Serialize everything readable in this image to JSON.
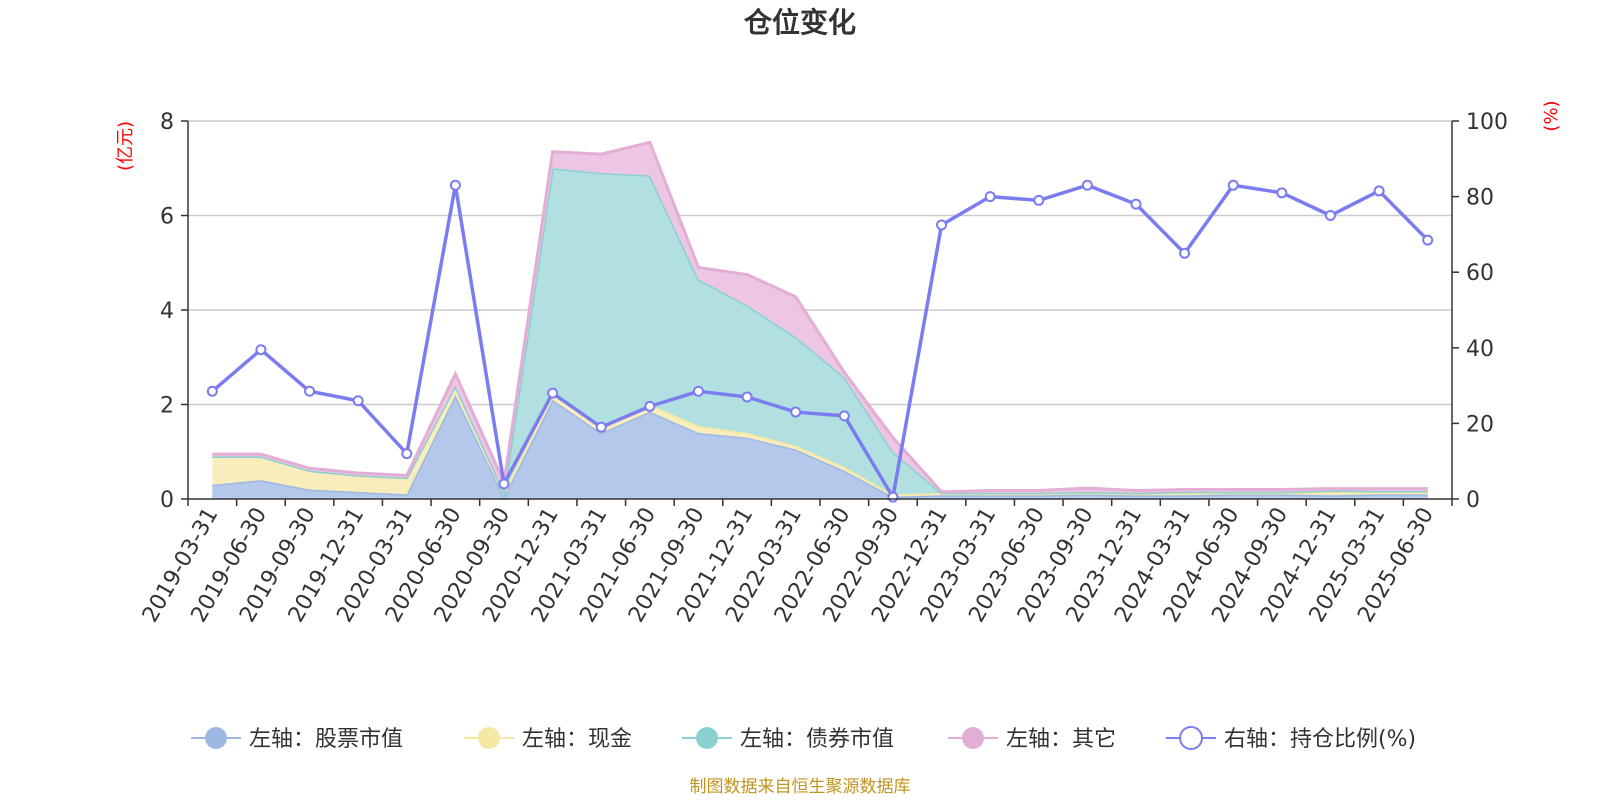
{
  "chart_data": {
    "type": "area",
    "title": "仓位变化",
    "left_axis": {
      "unit_label": "(亿元)",
      "ylim": [
        0,
        8
      ],
      "ticks": [
        "0",
        "2",
        "4",
        "6",
        "8"
      ]
    },
    "right_axis": {
      "unit_label": "(%)",
      "ylim": [
        0,
        100
      ],
      "ticks": [
        "0",
        "20",
        "40",
        "60",
        "80",
        "100"
      ]
    },
    "categories": [
      "2019-03-31",
      "2019-06-30",
      "2019-09-30",
      "2019-12-31",
      "2020-03-31",
      "2020-06-30",
      "2020-09-30",
      "2020-12-31",
      "2021-03-31",
      "2021-06-30",
      "2021-09-30",
      "2021-12-31",
      "2022-03-31",
      "2022-06-30",
      "2022-09-30",
      "2022-12-31",
      "2023-03-31",
      "2023-06-30",
      "2023-09-30",
      "2023-12-31",
      "2024-03-31",
      "2024-06-30",
      "2024-09-30",
      "2024-12-31",
      "2025-03-31",
      "2025-06-30"
    ],
    "stacked_series": [
      {
        "name": "左轴：股票市值",
        "color": "#9db8e3",
        "fill": "#b3c8ea",
        "values": [
          0.3,
          0.4,
          0.2,
          0.15,
          0.1,
          2.2,
          0.05,
          2.1,
          1.4,
          1.85,
          1.4,
          1.3,
          1.05,
          0.6,
          0.05,
          0.08,
          0.08,
          0.08,
          0.1,
          0.08,
          0.08,
          0.1,
          0.1,
          0.08,
          0.1,
          0.1
        ]
      },
      {
        "name": "左轴：现金",
        "color": "#f5e8a3",
        "fill": "#f8edbb",
        "values": [
          0.6,
          0.5,
          0.4,
          0.35,
          0.35,
          0.2,
          0.1,
          0.15,
          0.1,
          0.15,
          0.15,
          0.1,
          0.08,
          0.08,
          0.05,
          0.05,
          0.03,
          0.03,
          0.03,
          0.03,
          0.05,
          0.03,
          0.03,
          0.08,
          0.05,
          0.05
        ]
      },
      {
        "name": "左轴：债券市值",
        "color": "#8ad0d0",
        "fill": "#b2e0e0",
        "values": [
          0,
          0,
          0,
          0,
          0,
          0,
          0,
          4.75,
          5.4,
          4.85,
          3.1,
          2.7,
          2.3,
          1.9,
          0.9,
          0,
          0.02,
          0.02,
          0.02,
          0.02,
          0.02,
          0.02,
          0.02,
          0.02,
          0.02,
          0.02
        ]
      },
      {
        "name": "左轴：其它",
        "color": "#e3aed6",
        "fill": "#ecc6e3",
        "values": [
          0.05,
          0.05,
          0.05,
          0.05,
          0.05,
          0.25,
          0.2,
          0.35,
          0.4,
          0.7,
          0.25,
          0.65,
          0.85,
          0.1,
          0.3,
          0.02,
          0.05,
          0.05,
          0.08,
          0.05,
          0.05,
          0.05,
          0.05,
          0.04,
          0.05,
          0.05
        ]
      }
    ],
    "line_series": {
      "name": "右轴：持仓比例(%)",
      "color": "#7b7cf0",
      "axis": "right",
      "values": [
        28.5,
        39.5,
        28.5,
        26,
        12,
        83,
        4,
        28,
        19,
        24.5,
        28.5,
        27,
        23,
        22,
        0.5,
        72.5,
        80,
        79,
        83,
        78,
        65,
        83,
        81,
        75,
        81.5,
        68.5
      ]
    },
    "grid": true,
    "legend_position": "bottom",
    "legend_items": [
      "左轴：股票市值",
      "左轴：现金",
      "左轴：债券市值",
      "左轴：其它",
      "右轴：持仓比例(%)"
    ],
    "source_note": "制图数据来自恒生聚源数据库"
  }
}
